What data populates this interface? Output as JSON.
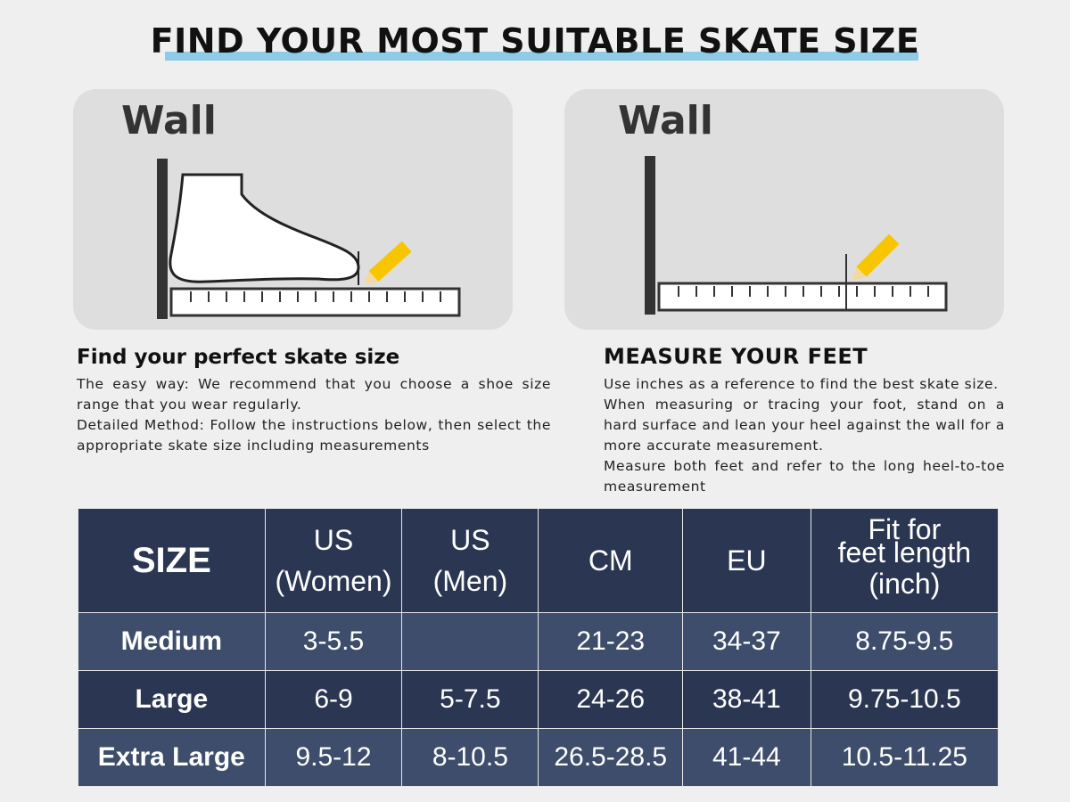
{
  "header": {
    "title": "FIND YOUR MOST SUITABLE SKATE SIZE"
  },
  "panels": [
    {
      "label": "Wall"
    },
    {
      "label": "Wall"
    }
  ],
  "sections": [
    {
      "heading": "Find your perfect skate size",
      "paragraphs": [
        "The easy way: We recommend that you choose a shoe size range that you wear regularly.",
        "Detailed Method: Follow the instructions below, then select the appropriate skate size including measurements"
      ]
    },
    {
      "heading": "MEASURE YOUR FEET",
      "paragraphs": [
        "Use inches as a reference to find the best skate size.",
        "When measuring or tracing your foot, stand on a hard surface and lean your heel against the wall for a more accurate measurement.",
        "Measure both feet and refer to the long heel-to-toe measurement"
      ]
    }
  ],
  "table": {
    "header": [
      [
        "SIZE"
      ],
      [
        "US",
        "(Women)"
      ],
      [
        "US",
        "(Men)"
      ],
      [
        "CM"
      ],
      [
        "EU"
      ],
      [
        "Fit for",
        "feet length",
        "(inch)"
      ]
    ],
    "rows": [
      [
        "Medium",
        "3-5.5",
        null,
        "21-23",
        "34-37",
        "8.75-9.5"
      ],
      [
        "Large",
        "6-9",
        "5-7.5",
        "24-26",
        "38-41",
        "9.75-10.5"
      ],
      [
        "Extra Large",
        "9.5-12",
        "8-10.5",
        "26.5-28.5",
        "41-44",
        "10.5-11.25"
      ]
    ]
  }
}
